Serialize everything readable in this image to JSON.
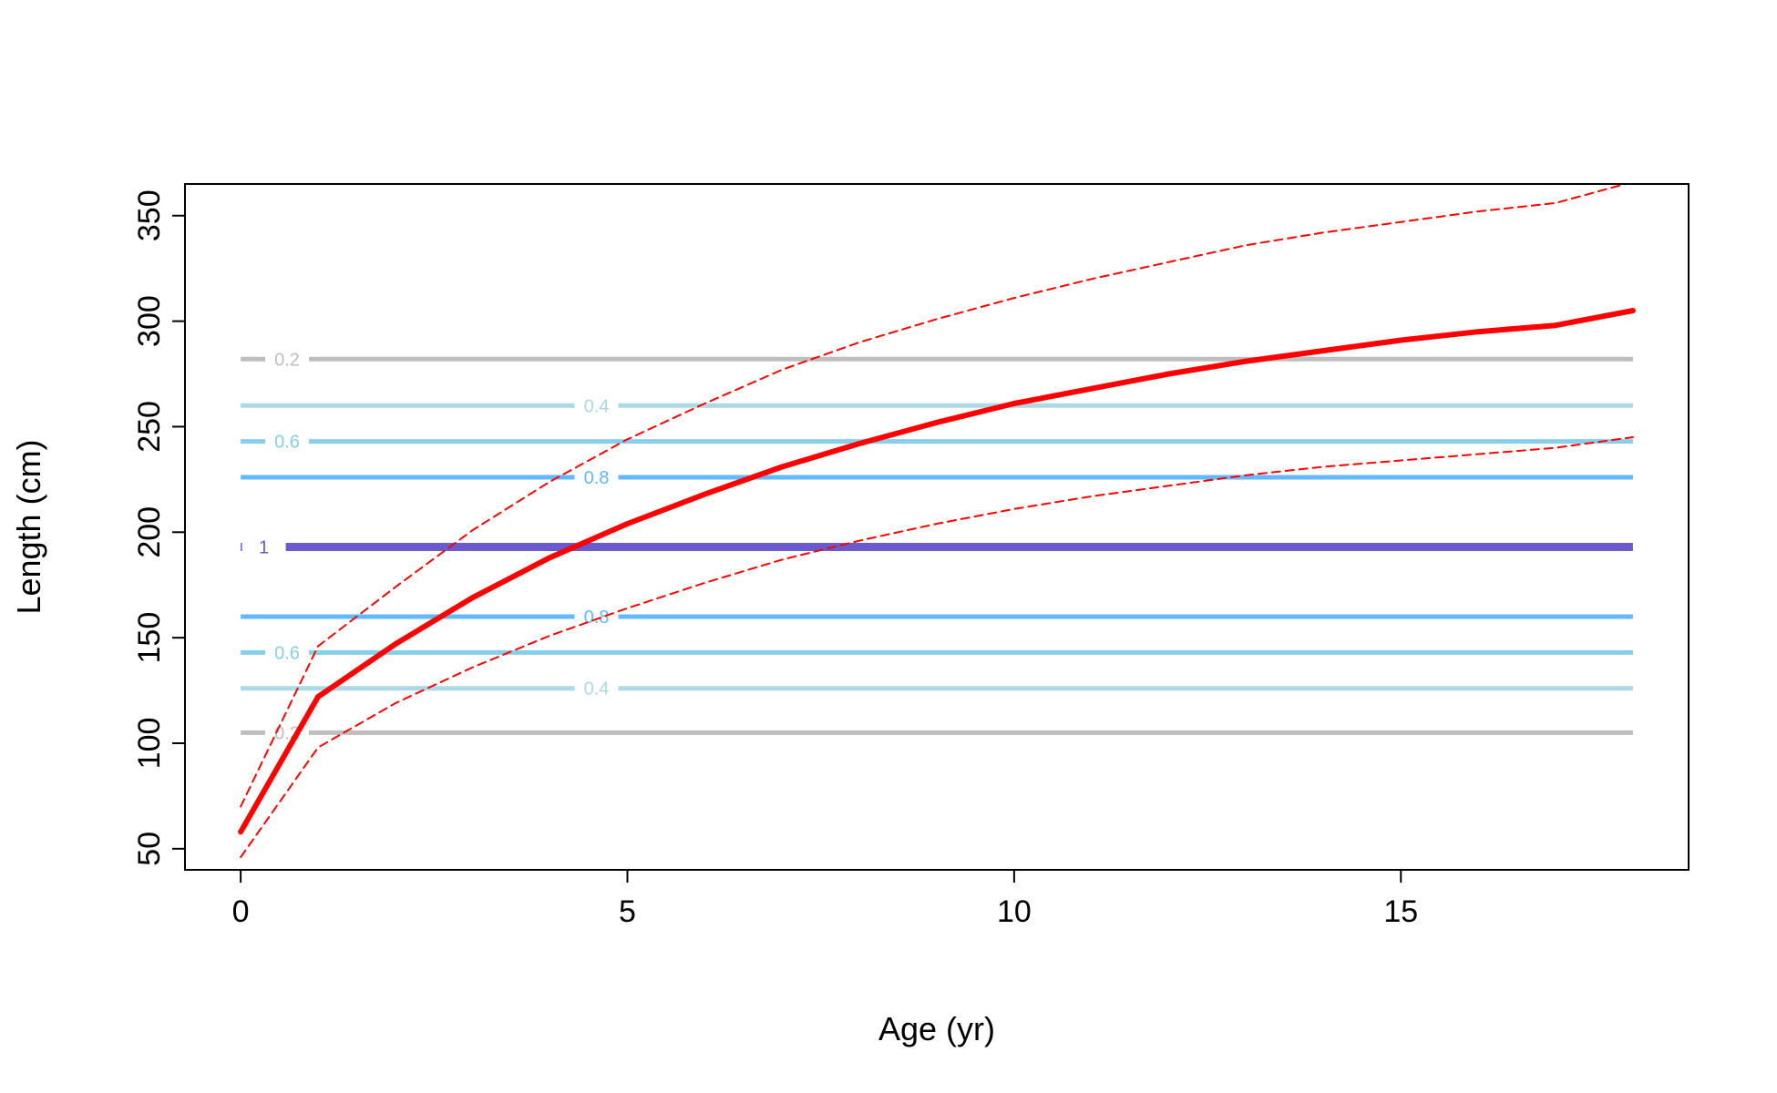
{
  "chart_data": {
    "type": "line",
    "title": "",
    "xlabel": "Age (yr)",
    "ylabel": "Length (cm)",
    "xlim": [
      -0.72,
      18.72
    ],
    "ylim": [
      40,
      365
    ],
    "xticks": [
      0,
      5,
      10,
      15
    ],
    "yticks": [
      50,
      100,
      150,
      200,
      250,
      300,
      350
    ],
    "grid": false,
    "legend": "none",
    "series": [
      {
        "role": "mean",
        "style": "solid",
        "color": "#ff0000",
        "x": [
          0,
          1,
          2,
          3,
          4,
          5,
          6,
          7,
          8,
          9,
          10,
          11,
          12,
          13,
          14,
          15,
          16,
          17,
          18
        ],
        "y": [
          58,
          122,
          147,
          169,
          188,
          204,
          218,
          231,
          242,
          252,
          261,
          268,
          275,
          281,
          286,
          291,
          295,
          298,
          305
        ]
      },
      {
        "role": "upper",
        "style": "dashed",
        "color": "#ff0000",
        "x": [
          0,
          1,
          2,
          3,
          4,
          5,
          6,
          7,
          8,
          9,
          10,
          11,
          12,
          13,
          14,
          15,
          16,
          17,
          18
        ],
        "y": [
          70,
          146,
          174,
          201,
          224,
          244,
          261,
          277,
          290,
          301,
          311,
          320,
          328,
          336,
          342,
          347,
          352,
          356,
          366
        ]
      },
      {
        "role": "lower",
        "style": "dashed",
        "color": "#ff0000",
        "x": [
          0,
          1,
          2,
          3,
          4,
          5,
          6,
          7,
          8,
          9,
          10,
          11,
          12,
          13,
          14,
          15,
          16,
          17,
          18
        ],
        "y": [
          46,
          98,
          119,
          136,
          151,
          164,
          176,
          187,
          196,
          204,
          211,
          217,
          222,
          227,
          231,
          234,
          237,
          240,
          245
        ]
      }
    ],
    "hlines": [
      {
        "y": 282,
        "label": "0.2",
        "color": "#bebebe",
        "label_x": 0.6,
        "width": 5
      },
      {
        "y": 260,
        "label": "0.4",
        "color": "#add8e6",
        "label_x": 4.6,
        "width": 5
      },
      {
        "y": 243,
        "label": "0.6",
        "color": "#87ceeb",
        "label_x": 0.6,
        "width": 5
      },
      {
        "y": 226,
        "label": "0.8",
        "color": "#63b8ff",
        "label_x": 4.6,
        "width": 5
      },
      {
        "y": 193,
        "label": "1",
        "color": "#6a5acd",
        "label_x": 0.3,
        "width": 9
      },
      {
        "y": 160,
        "label": "0.8",
        "color": "#63b8ff",
        "label_x": 4.6,
        "width": 5
      },
      {
        "y": 143,
        "label": "0.6",
        "color": "#87ceeb",
        "label_x": 0.6,
        "width": 5
      },
      {
        "y": 126,
        "label": "0.4",
        "color": "#add8e6",
        "label_x": 4.6,
        "width": 5
      },
      {
        "y": 105,
        "label": "0.2",
        "color": "#bebebe",
        "label_x": 0.6,
        "width": 5
      }
    ]
  }
}
